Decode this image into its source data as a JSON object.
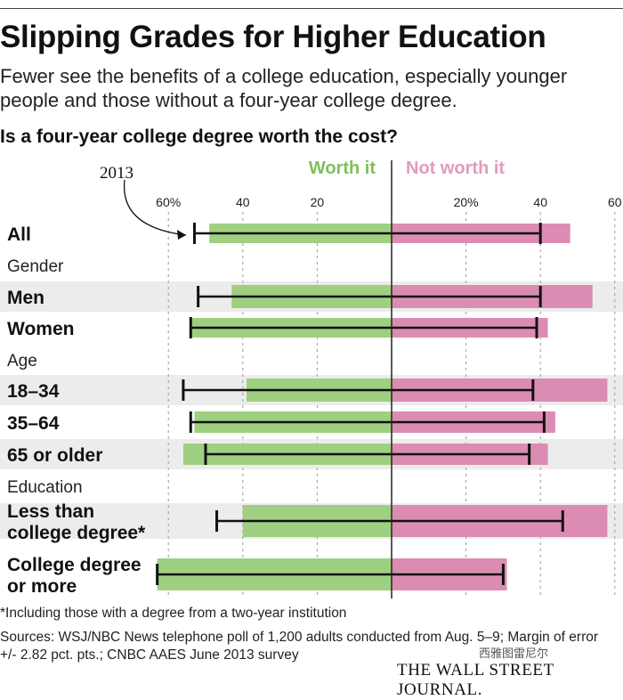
{
  "header": {
    "title": "Slipping Grades for Higher Education",
    "subtitle": "Fewer see the benefits of a college education, especially younger people and those without a four-year college degree.",
    "question": "Is a four-year college degree worth the cost?"
  },
  "chart_data": {
    "type": "bar",
    "orientation": "horizontal-diverging",
    "title": "Is a four-year college degree worth the cost?",
    "left_label": "Worth it",
    "right_label": "Not worth it",
    "left_ticks": [
      "60%",
      "40",
      "20"
    ],
    "right_ticks": [
      "20%",
      "40",
      "60"
    ],
    "xlim": [
      0,
      60
    ],
    "annotation": "2013",
    "colors": {
      "worth": "#9fcf80",
      "not_worth": "#dc8cb2",
      "marker": "#111111",
      "axis": "#222222",
      "shade": "#ececec"
    },
    "rows": [
      {
        "label": "All",
        "kind": "category",
        "worth": 49,
        "not_worth": 48,
        "worth_2013": 53,
        "not_worth_2013": 40
      },
      {
        "label": "Gender",
        "kind": "group"
      },
      {
        "label": "Men",
        "kind": "category",
        "worth": 43,
        "not_worth": 54,
        "worth_2013": 52,
        "not_worth_2013": 40
      },
      {
        "label": "Women",
        "kind": "category",
        "worth": 54,
        "not_worth": 42,
        "worth_2013": 54,
        "not_worth_2013": 39
      },
      {
        "label": "Age",
        "kind": "group"
      },
      {
        "label": "18–34",
        "kind": "category",
        "worth": 39,
        "not_worth": 58,
        "worth_2013": 56,
        "not_worth_2013": 38
      },
      {
        "label": "35–64",
        "kind": "category",
        "worth": 53,
        "not_worth": 44,
        "worth_2013": 54,
        "not_worth_2013": 41
      },
      {
        "label": "65 or older",
        "kind": "category",
        "worth": 56,
        "not_worth": 42,
        "worth_2013": 50,
        "not_worth_2013": 37
      },
      {
        "label": "Education",
        "kind": "group"
      },
      {
        "label": "Less than college degree*",
        "kind": "category",
        "worth": 40,
        "not_worth": 58,
        "worth_2013": 47,
        "not_worth_2013": 46
      },
      {
        "label": "College degree or more",
        "kind": "category",
        "worth": 63,
        "not_worth": 31,
        "worth_2013": 63,
        "not_worth_2013": 30
      }
    ]
  },
  "footer": {
    "footnote": "*Including those with a degree from a two-year institution",
    "sources": "Sources: WSJ/NBC News telephone poll of 1,200 adults conducted from Aug. 5–9; Margin of error +/- 2.82 pct. pts.; CNBC AAES June 2013 survey",
    "watermark": "西雅图雷尼尔",
    "logo": "THE WALL STREET JOURNAL."
  }
}
